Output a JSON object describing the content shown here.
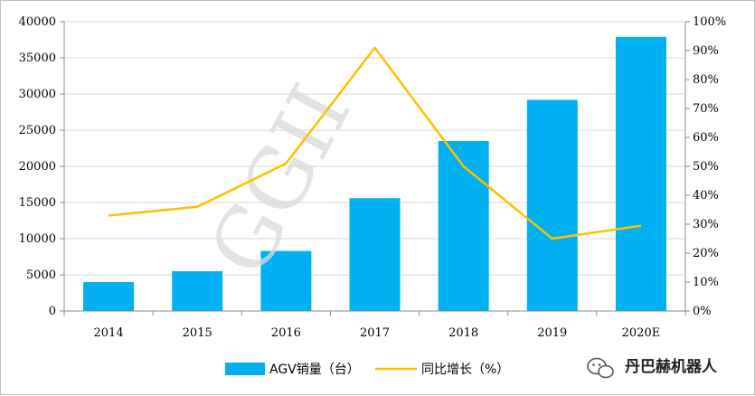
{
  "chart_data": {
    "type": "bar",
    "categories": [
      "2014",
      "2015",
      "2016",
      "2017",
      "2018",
      "2019",
      "2020E"
    ],
    "series": [
      {
        "name": "AGV销量（台）",
        "type": "bar",
        "axis": "left",
        "values": [
          4000,
          5500,
          8300,
          15600,
          23500,
          29200,
          37900
        ],
        "color": "#00b0f0"
      },
      {
        "name": "同比增长（%）",
        "type": "line",
        "axis": "right",
        "values": [
          33,
          36,
          51,
          91,
          50,
          25,
          29.5
        ],
        "color": "#ffc000"
      }
    ],
    "y_left": {
      "ylim": [
        0,
        40000
      ],
      "ticks": [
        "0",
        "5000",
        "10000",
        "15000",
        "20000",
        "25000",
        "30000",
        "35000",
        "40000"
      ]
    },
    "y_right": {
      "ylim": [
        0,
        100
      ],
      "ticks": [
        "0%",
        "10%",
        "20%",
        "30%",
        "40%",
        "50%",
        "60%",
        "70%",
        "80%",
        "90%",
        "100%"
      ]
    },
    "grid": true,
    "legend_position": "bottom",
    "watermark": "GGII",
    "brand": {
      "name": "丹巴赫机器人",
      "icon": "wechat-icon"
    }
  }
}
